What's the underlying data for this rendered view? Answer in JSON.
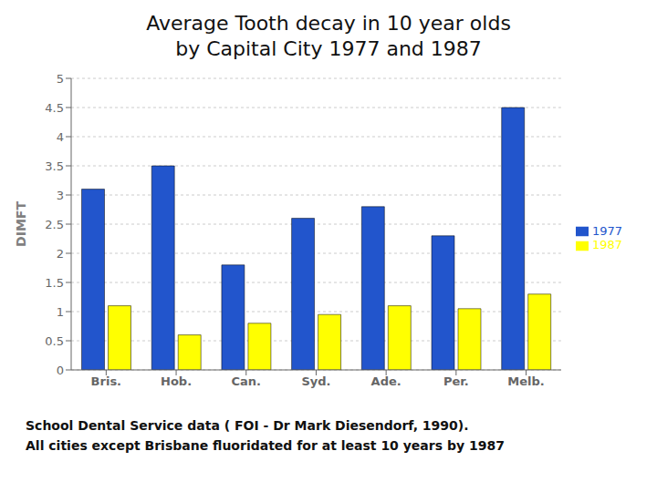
{
  "chart_data": {
    "type": "bar",
    "title": "Average Tooth decay in 10 year olds",
    "subtitle": "by Capital City 1977 and 1987",
    "categories": [
      "Bris.",
      "Hob.",
      "Can.",
      "Syd.",
      "Ade.",
      "Per.",
      "Melb."
    ],
    "series": [
      {
        "name": "1977",
        "color": "#2255CC",
        "values": [
          3.1,
          3.5,
          1.8,
          2.6,
          2.8,
          2.3,
          4.5
        ]
      },
      {
        "name": "1987",
        "color": "#FFFF00",
        "values": [
          1.1,
          0.6,
          0.8,
          0.95,
          1.1,
          1.05,
          1.3
        ]
      }
    ],
    "ylabel": "DIMFT",
    "ylim": [
      0,
      5
    ],
    "yticks": [
      0,
      0.5,
      1,
      1.5,
      2,
      2.5,
      3,
      3.5,
      4,
      4.5,
      5
    ],
    "grid": true,
    "legend": "right",
    "annotations": [
      "School Dental Service data ( FOI  - Dr Mark Diesendorf, 1990).",
      "All cities except Brisbane fluoridated for at least 10 years by 1987"
    ]
  }
}
